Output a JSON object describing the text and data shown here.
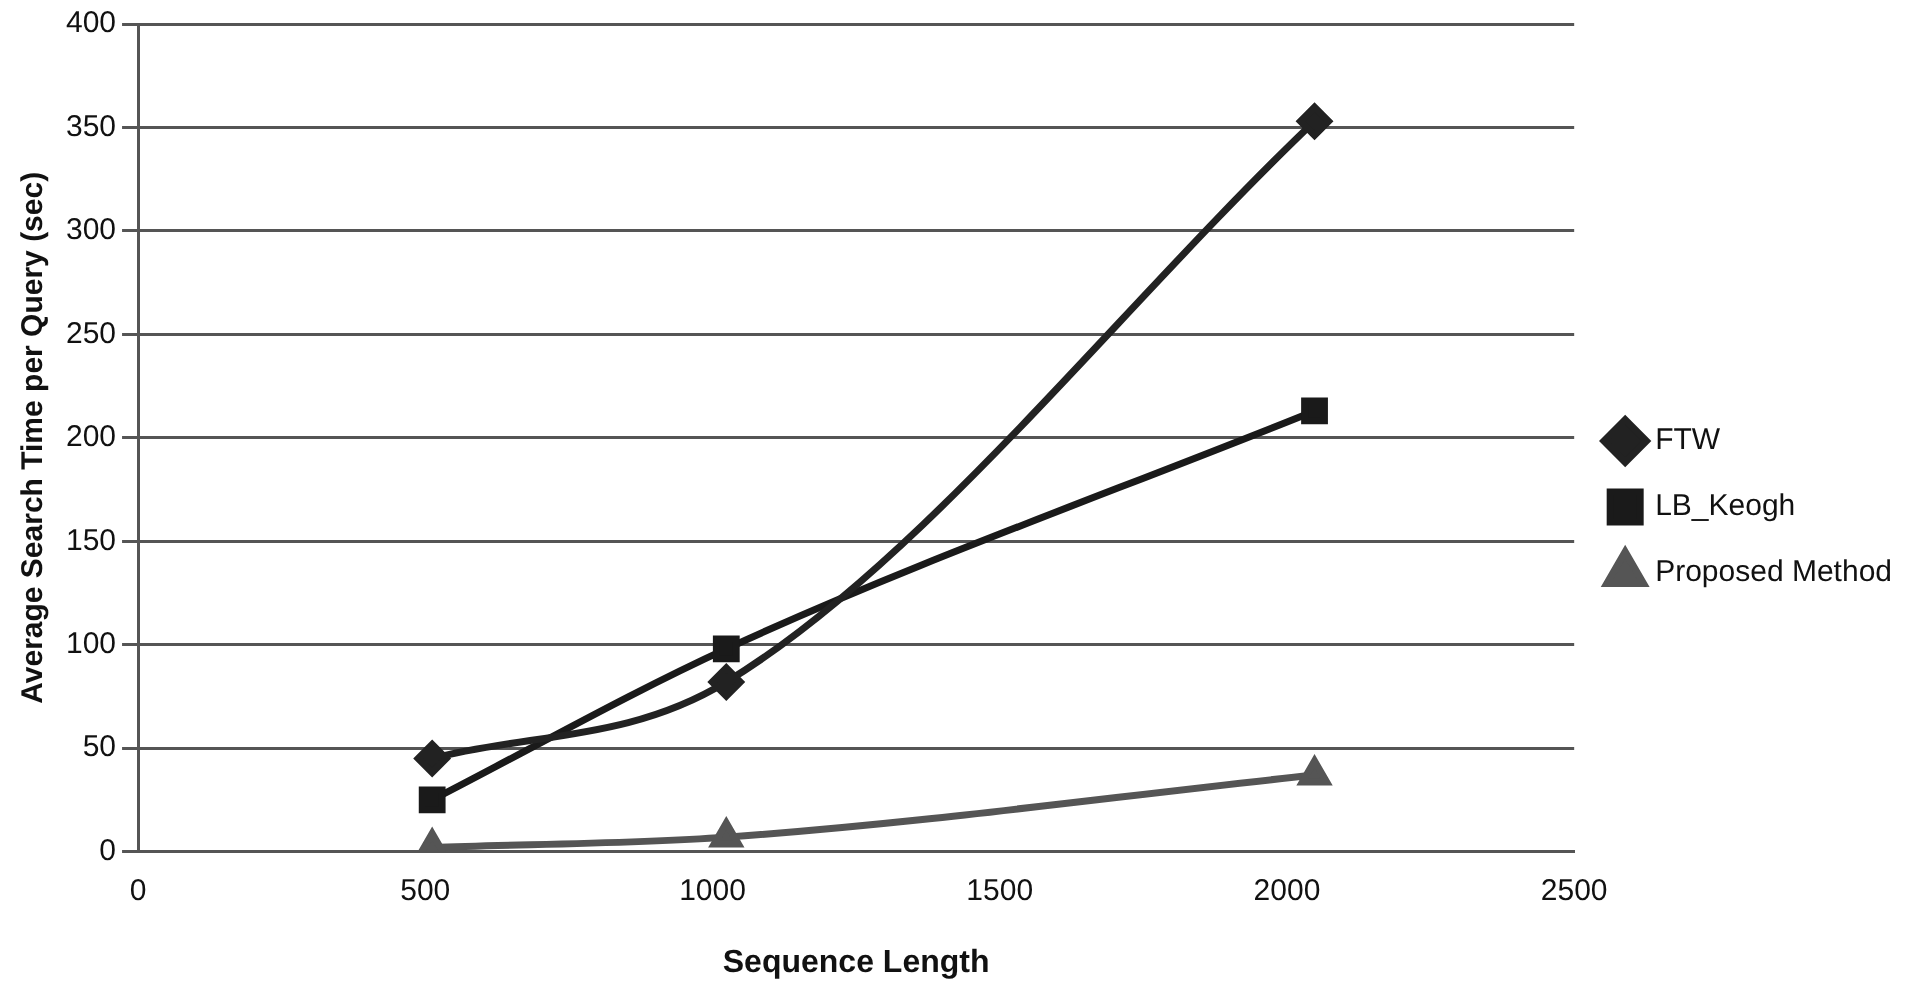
{
  "chart_data": {
    "type": "line",
    "xlabel": "Sequence Length",
    "ylabel": "Average Search Time per Query (sec)",
    "x": [
      512,
      1024,
      2048
    ],
    "series": [
      {
        "name": "FTW",
        "color": "#222222",
        "marker": "diamond",
        "values": [
          45,
          82,
          353
        ]
      },
      {
        "name": "LB_Keogh",
        "color": "#1a1a1a",
        "marker": "square",
        "values": [
          25,
          98,
          213
        ]
      },
      {
        "name": "Proposed Method",
        "color": "#555555",
        "marker": "triangle",
        "values": [
          2,
          7,
          37
        ]
      }
    ],
    "xlim": [
      0,
      2500
    ],
    "xticks": [
      0,
      500,
      1000,
      1500,
      2000,
      2500
    ],
    "ylim": [
      0,
      400
    ],
    "yticks": [
      0,
      50,
      100,
      150,
      200,
      250,
      300,
      350,
      400
    ],
    "grid": "y",
    "legend": "right"
  }
}
